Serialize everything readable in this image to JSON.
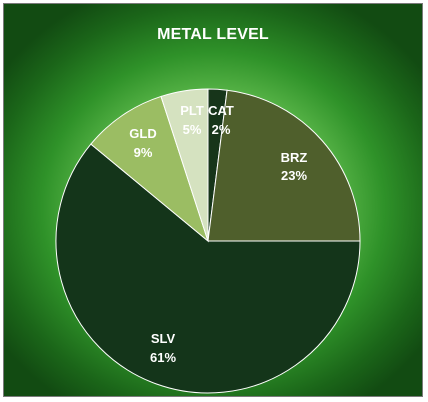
{
  "chart_data": {
    "type": "pie",
    "title": "METAL LEVEL",
    "slices": [
      {
        "label": "CAT",
        "value": 2,
        "pct_label": "2%",
        "color": "#17351a"
      },
      {
        "label": "BRZ",
        "value": 23,
        "pct_label": "23%",
        "color": "#4f5f2c"
      },
      {
        "label": "SLV",
        "value": 61,
        "pct_label": "61%",
        "color": "#14351a"
      },
      {
        "label": "GLD",
        "value": 9,
        "pct_label": "9%",
        "color": "#9bbd63"
      },
      {
        "label": "PLT",
        "value": 5,
        "pct_label": "5%",
        "color": "#d5e2c0"
      }
    ],
    "legend": "none"
  }
}
